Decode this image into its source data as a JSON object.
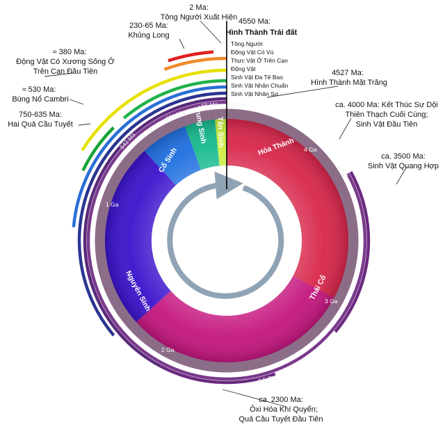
{
  "eons": [
    {
      "name": "Hỏa Thành",
      "color": "#d8264a"
    },
    {
      "name": "Thái Cổ",
      "color": "#c4157e"
    },
    {
      "name": "Nguyên Sinh",
      "color": "#3a12cc"
    },
    {
      "name": "Cổ Sinh",
      "color": "#1e6fe0"
    },
    {
      "name": "Trung Sinh",
      "color": "#16b98e"
    },
    {
      "name": "Tân Sinh",
      "color": "#c9ee3c"
    }
  ],
  "ga_ticks": [
    "4 Ga",
    "3 Ga",
    "2 Ga",
    "1 Ga"
  ],
  "ring_ticks": [
    "4.6 Ga",
    "3.8 Ga",
    "2.5 Ga",
    "542 Ma",
    "251 Ma",
    "65 Ma"
  ],
  "events": {
    "human": {
      "date": "2 Ma:",
      "text": "Tông Người Xuất Hiện"
    },
    "earth": {
      "date": "4550 Ma:",
      "text": "Hình Thành Trái đất"
    },
    "dino": {
      "date": "230-65 Ma:",
      "text": "Khủng Long"
    },
    "land": {
      "date": "≈ 380 Ma:",
      "line1": "Động Vật Có Xương Sống Ở",
      "line2": "Trên Cạn Đầu Tiên"
    },
    "cambrian": {
      "date": "≈ 530 Ma:",
      "text": "Bùng Nổ Cambri"
    },
    "snowball": {
      "date": "750-635 Ma:",
      "text": "Hai Quả Cầu Tuyết"
    },
    "moon": {
      "date": "4527 Ma:",
      "text": "Hình Thành Mặt Trăng"
    },
    "lhb": {
      "line1": "ca. 4000 Ma: Kết Thúc Sự Dội",
      "line2": "Thiên Thạch Cuối Cùng;",
      "line3": "Sinh Vật Đầu Tiên"
    },
    "photo": {
      "date": "ca. 3500 Ma:",
      "text": "Sinh Vật Quang Hợp"
    },
    "oxygen": {
      "date": "ca. 2300 Ma:",
      "line1": "Ôxi Hóa Khí Quyển;",
      "line2": "Quả Cầu Tuyết Đầu Tiên"
    }
  },
  "lineage_labels": [
    "Tông Người",
    "Động Vật Có Vú",
    "Thực Vật Ở  Trên Cạn",
    "Động Vật",
    "Sinh Vật Đa Tế Bao",
    "Sinh Vật Nhân Chuẩn",
    "Sinh Vật Nhân Sơ"
  ]
}
